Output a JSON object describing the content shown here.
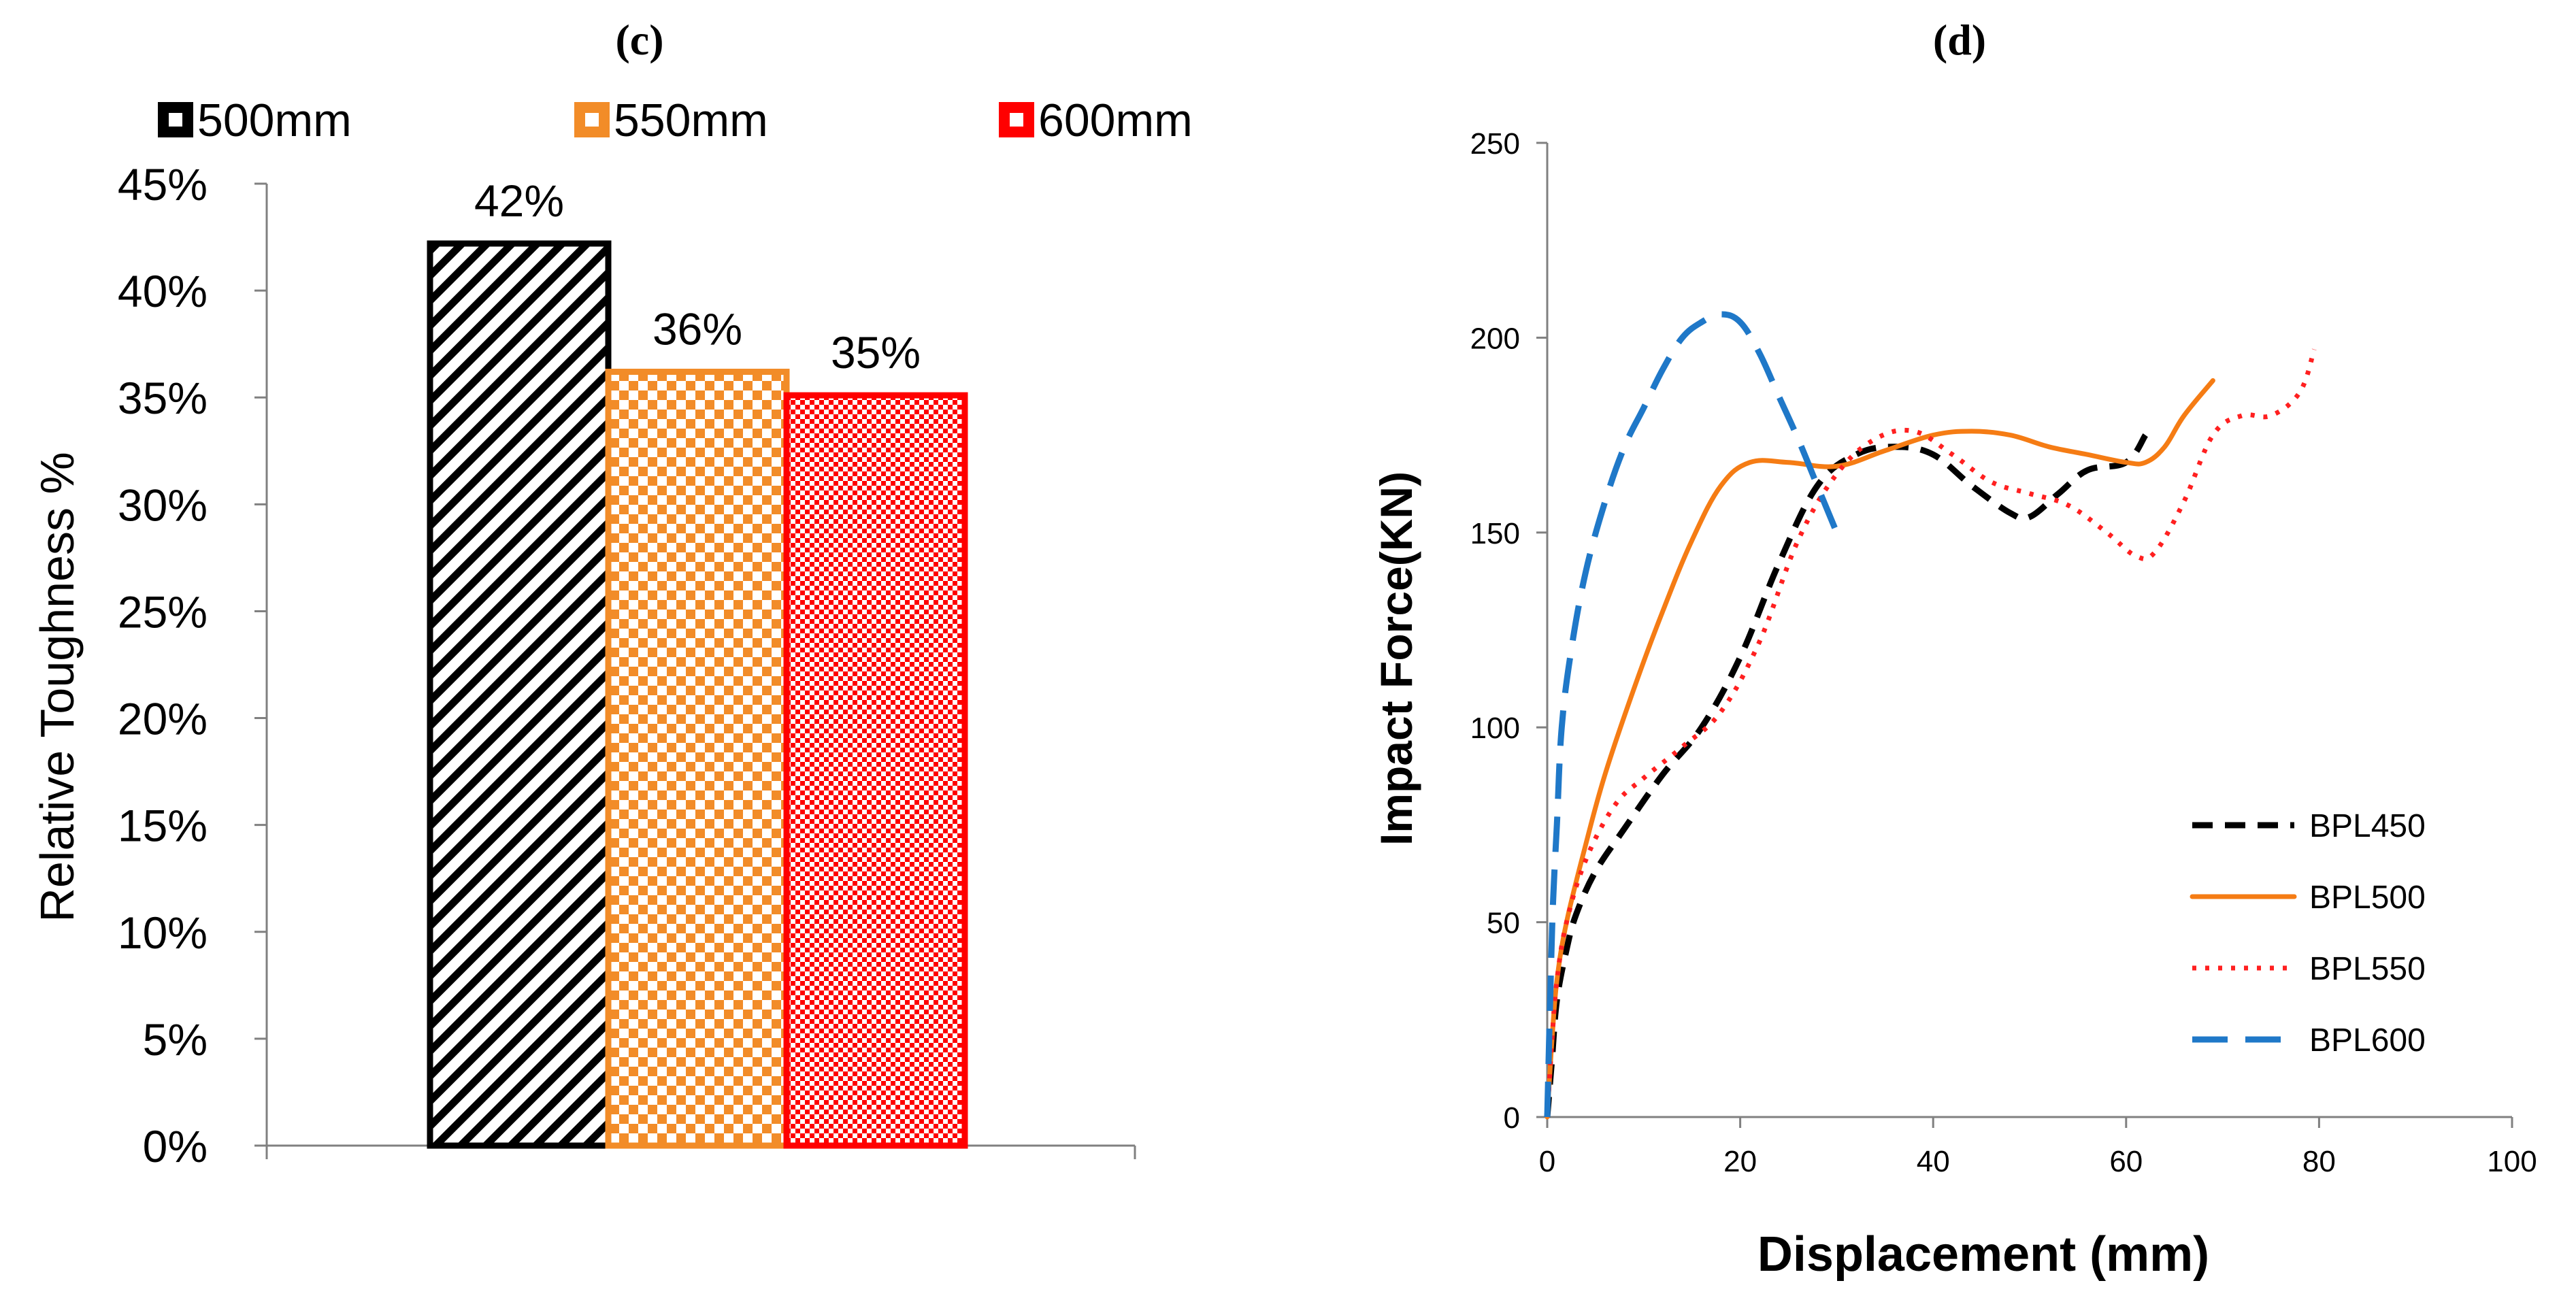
{
  "colors": {
    "c500": "#000000",
    "c550": "#f28c28",
    "c600": "#ff0000",
    "bpl450": "#000000",
    "bpl500": "#f57c14",
    "bpl550": "#ff2020",
    "bpl600": "#1f78c8",
    "axis": "#808080"
  },
  "chart_data": [
    {
      "panel": "(c)",
      "type": "bar",
      "ylabel": "Relative Toughness %",
      "xlabel": "",
      "ylim": [
        0,
        45
      ],
      "yticks": [
        "0%",
        "5%",
        "10%",
        "15%",
        "20%",
        "25%",
        "30%",
        "35%",
        "40%",
        "45%"
      ],
      "legend_position": "top",
      "series": [
        {
          "name": "500mm",
          "value": 42.2,
          "label": "42%",
          "pattern": "diagonal-stripes"
        },
        {
          "name": "550mm",
          "value": 36.2,
          "label": "36%",
          "pattern": "checker"
        },
        {
          "name": "600mm",
          "value": 35.1,
          "label": "35%",
          "pattern": "fine-checker"
        }
      ]
    },
    {
      "panel": "(d)",
      "type": "line",
      "xlabel": "Displacement (mm)",
      "ylabel": "Impact Force(KN)",
      "xlim": [
        0,
        100
      ],
      "ylim": [
        0,
        250
      ],
      "xticks": [
        "0",
        "20",
        "40",
        "60",
        "80",
        "100"
      ],
      "yticks": [
        "0",
        "50",
        "100",
        "150",
        "200",
        "250"
      ],
      "legend_position": "bottom-right",
      "series": [
        {
          "name": "BPL450",
          "style": "dashed",
          "x": [
            0,
            0.5,
            1,
            2,
            3,
            5,
            8,
            12,
            16,
            20,
            24,
            28,
            32,
            36,
            40,
            44,
            48,
            50,
            53,
            56,
            60,
            62
          ],
          "y": [
            0,
            15,
            30,
            43,
            52,
            63,
            74,
            88,
            100,
            118,
            142,
            162,
            170,
            172,
            170,
            162,
            155,
            154,
            160,
            166,
            168,
            175
          ]
        },
        {
          "name": "BPL500",
          "style": "solid",
          "x": [
            0,
            0.5,
            1,
            2,
            4,
            6,
            9,
            12,
            15,
            18,
            21,
            25,
            30,
            35,
            40,
            44,
            48,
            52,
            56,
            60,
            62,
            64,
            66,
            69
          ],
          "y": [
            0,
            20,
            35,
            50,
            70,
            88,
            110,
            130,
            148,
            162,
            168,
            168,
            167,
            171,
            175,
            176,
            175,
            172,
            170,
            168,
            168,
            172,
            180,
            189
          ]
        },
        {
          "name": "BPL550",
          "style": "dotted",
          "x": [
            0,
            0.5,
            1,
            2,
            4,
            7,
            10,
            14,
            18,
            22,
            26,
            30,
            34,
            38,
            42,
            46,
            50,
            54,
            58,
            61,
            63,
            66,
            69,
            72,
            75,
            78,
            79.5
          ],
          "y": [
            0,
            20,
            35,
            50,
            66,
            80,
            87,
            95,
            104,
            122,
            148,
            165,
            174,
            176,
            170,
            163,
            160,
            157,
            150,
            144,
            145,
            158,
            175,
            180,
            180,
            186,
            197
          ]
        },
        {
          "name": "BPL600",
          "style": "long-dashed",
          "x": [
            0,
            0.3,
            0.6,
            1,
            1.5,
            2.5,
            4,
            6,
            8,
            10,
            12,
            14,
            16,
            18,
            20,
            22,
            24,
            26,
            28,
            30
          ],
          "y": [
            0,
            30,
            55,
            75,
            100,
            120,
            140,
            158,
            172,
            182,
            192,
            200,
            204,
            206,
            204,
            196,
            185,
            174,
            162,
            150
          ]
        }
      ]
    }
  ]
}
